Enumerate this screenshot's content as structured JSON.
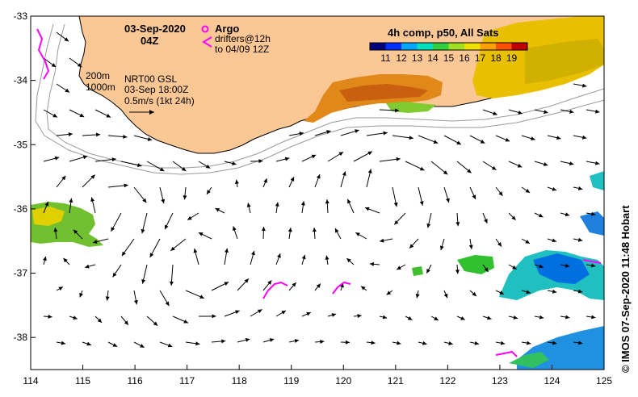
{
  "map": {
    "lon_range": [
      114,
      125
    ],
    "lat_range": [
      -38.5,
      -33
    ],
    "lon_ticks": [
      "114",
      "115",
      "116",
      "117",
      "118",
      "119",
      "120",
      "121",
      "122",
      "123",
      "124",
      "125"
    ],
    "lat_ticks": [
      "-33",
      "-34",
      "-35",
      "-36",
      "-37",
      "-38"
    ],
    "land_color": "#fbc895",
    "ocean_color": "#ffffff",
    "isobaths": [
      "200m",
      "1000m"
    ]
  },
  "header": {
    "date": "03-Sep-2020",
    "time": "04Z"
  },
  "legend": {
    "argo_label": "Argo",
    "drifters_label": "drifters@12h",
    "drifters_window": "to 04/09 12Z",
    "marker_color": "#ff00ff"
  },
  "info": {
    "isobath_200": "200m",
    "isobath_1000": "1000m",
    "product": "NRT00 GSL",
    "valid": "03-Sep 18:00Z",
    "velocity_scale": "0.5m/s (1kt 24h)"
  },
  "colorbar": {
    "title": "4h comp, p50, All Sats",
    "ticks": [
      "11",
      "12",
      "13",
      "14",
      "15",
      "16",
      "17",
      "18",
      "19"
    ],
    "colors": [
      "#00007f",
      "#0030ff",
      "#00a8ff",
      "#00e0c0",
      "#30d040",
      "#a0e020",
      "#f0e000",
      "#ffa000",
      "#ff5000",
      "#c00000"
    ]
  },
  "credit": "©  IMOS 07-Sep-2020 11:48 Hobart"
}
